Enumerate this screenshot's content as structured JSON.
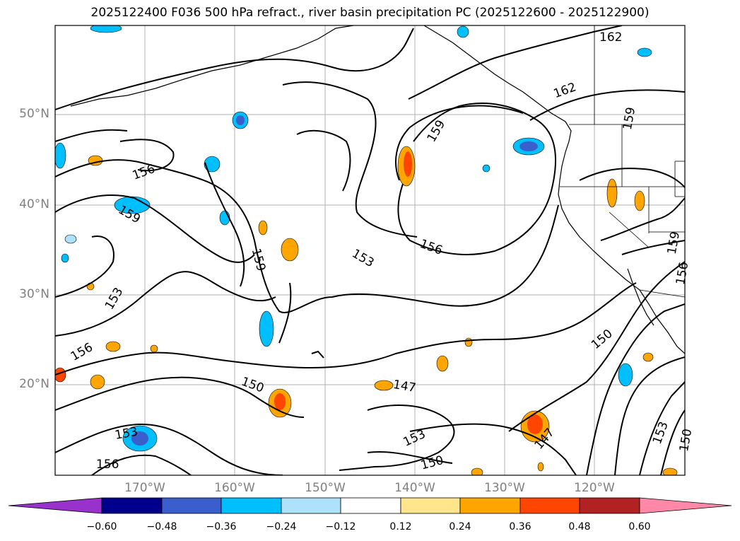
{
  "title": "2025122400 F036 500 hPa refract., river basin precipitation PC (2025122600 - 2025122900)",
  "lat_labels": [
    "50°N",
    "40°N",
    "30°N",
    "20°N"
  ],
  "lon_labels": [
    "170°W",
    "160°W",
    "150°W",
    "140°W",
    "130°W",
    "120°W"
  ],
  "colorbar": {
    "labels": [
      "−0.60",
      "−0.48",
      "−0.36",
      "−0.24",
      "−0.12",
      "0.12",
      "0.24",
      "0.36",
      "0.48",
      "0.60"
    ],
    "colors": [
      "#9932CC",
      "#00008B",
      "#3A5FCD",
      "#00BFFF",
      "#ADE2FA",
      "#FFFFFF",
      "#FFE68C",
      "#FFA500",
      "#FF4500",
      "#B22222",
      "#FF88A8"
    ]
  },
  "contour_labels": [
    "162",
    "162",
    "159",
    "159",
    "159",
    "159",
    "159",
    "156",
    "156",
    "156",
    "156",
    "153",
    "153",
    "153",
    "153",
    "150",
    "150",
    "150",
    "150",
    "147",
    "147",
    "153",
    "156"
  ]
}
